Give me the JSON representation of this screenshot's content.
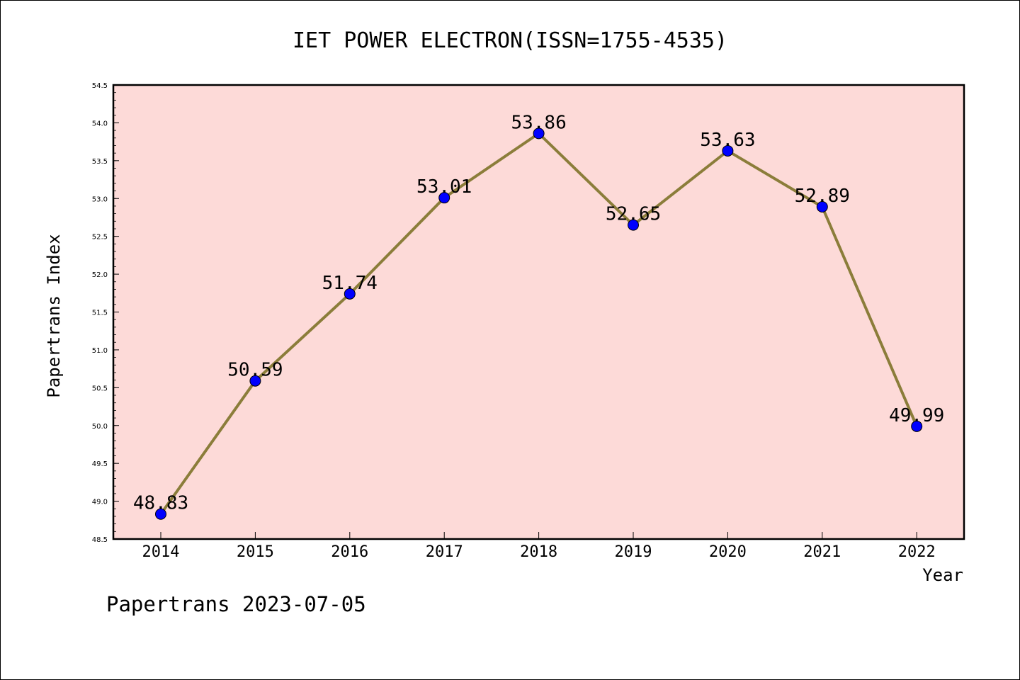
{
  "chart_data": {
    "type": "line",
    "title": "IET POWER ELECTRON(ISSN=1755-4535)",
    "xlabel": "Year",
    "ylabel": "Papertrans Index",
    "categories": [
      "2014",
      "2015",
      "2016",
      "2017",
      "2018",
      "2019",
      "2020",
      "2021",
      "2022"
    ],
    "series": [
      {
        "values": [
          48.83,
          50.59,
          51.74,
          53.01,
          53.86,
          52.65,
          53.63,
          52.89,
          49.99
        ],
        "data_labels": [
          "48.83",
          "50.59",
          "51.74",
          "53.01",
          "53.86",
          "52.65",
          "53.63",
          "52.89",
          "49.99"
        ]
      }
    ],
    "ylim": [
      48.5,
      54.5
    ],
    "yticks": [
      "48.5",
      "49.0",
      "49.5",
      "50.0",
      "50.5",
      "51.0",
      "51.5",
      "52.0",
      "52.5",
      "53.0",
      "53.5",
      "54.0",
      "54.5"
    ],
    "grid": false,
    "legend": "none",
    "colors": {
      "plot_background": "#fddad8",
      "line": "#8b7d3a",
      "marker": "#0000ff"
    }
  },
  "footer": "Papertrans 2023-07-05"
}
